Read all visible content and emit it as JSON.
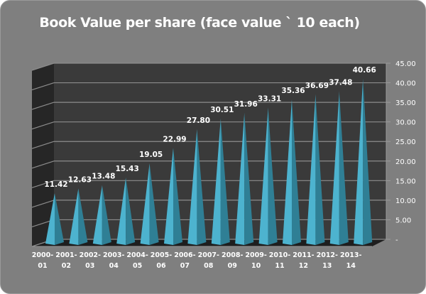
{
  "chart_data": {
    "type": "bar",
    "style": "3d-pyramid",
    "title": "Book Value per share (face value ` 10 each)",
    "xlabel": "",
    "ylabel": "",
    "categories": [
      [
        "2000-",
        "01"
      ],
      [
        "2001-",
        "02"
      ],
      [
        "2002-",
        "03"
      ],
      [
        "2003-",
        "04"
      ],
      [
        "2004-",
        "05"
      ],
      [
        "2005-",
        "06"
      ],
      [
        "2006-",
        "07"
      ],
      [
        "2007-",
        "08"
      ],
      [
        "2008-",
        "09"
      ],
      [
        "2009-",
        "10"
      ],
      [
        "2010-",
        "11"
      ],
      [
        "2011-",
        "12"
      ],
      [
        "2012-",
        "13"
      ],
      [
        "2013-",
        "14"
      ]
    ],
    "values": [
      11.42,
      12.63,
      13.48,
      15.43,
      19.05,
      22.99,
      27.8,
      30.51,
      31.96,
      33.31,
      35.36,
      36.69,
      37.48,
      40.66
    ],
    "data_labels": [
      "11.42",
      "12.63",
      "13.48",
      "15.43",
      "19.05",
      "22.99",
      "27.80",
      "30.51",
      "31.96",
      "33.31",
      "35.36",
      "36.69",
      "37.48",
      "40.66"
    ],
    "ylim": [
      0,
      45
    ],
    "y_ticks": [
      0,
      5,
      10,
      15,
      20,
      25,
      30,
      35,
      40,
      45
    ],
    "y_tick_labels": [
      "-",
      "5.00",
      "10.00",
      "15.00",
      "20.00",
      "25.00",
      "30.00",
      "35.00",
      "40.00",
      "45.00"
    ],
    "y_axis_side": "right",
    "grid": true,
    "legend": "none",
    "colors": {
      "background": "#7f7f7f",
      "wall": "#3a3a3a",
      "side_wall": "#262626",
      "gridline": "#8c8c8c",
      "pyramid_light": "#4db3cf",
      "pyramid_dark": "#2f7f95",
      "text": "#ffffff"
    }
  }
}
